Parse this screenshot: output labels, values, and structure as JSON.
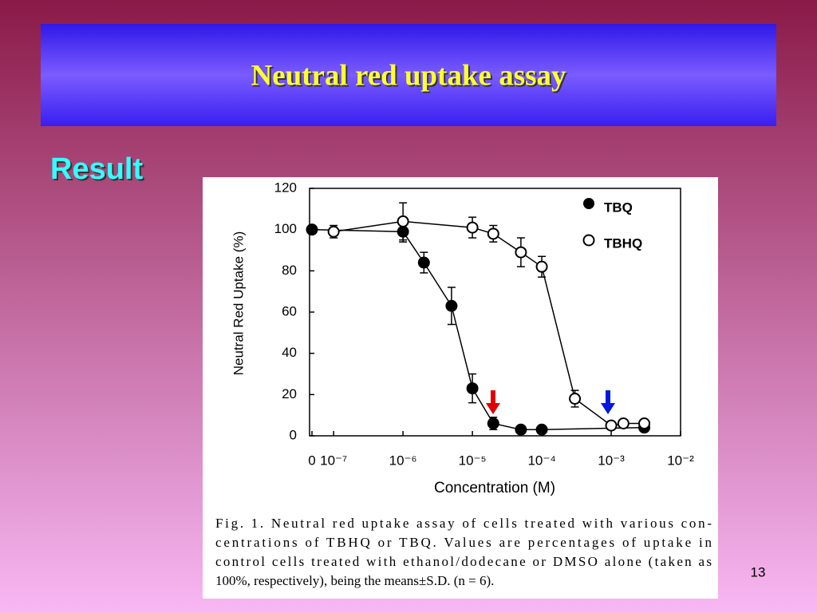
{
  "slide": {
    "title": "Neutral red uptake assay",
    "subtitle": "Result",
    "page_number": 13
  },
  "chart_data": {
    "type": "line",
    "x_scale": "log",
    "xlabel": "Concentration (M)",
    "ylabel": "Neutral Red Uptake (%)",
    "xlim": [
      4.5e-08,
      0.01
    ],
    "xticks": [
      0,
      {
        "value": 1e-07,
        "label": "10⁻⁷"
      },
      {
        "value": 1e-06,
        "label": "10⁻⁶"
      },
      {
        "value": 1e-05,
        "label": "10⁻⁵"
      },
      {
        "value": 0.0001,
        "label": "10⁻⁴"
      },
      {
        "value": 0.001,
        "label": "10⁻³"
      },
      {
        "value": 0.01,
        "label": "10⁻²"
      }
    ],
    "ylim": [
      0,
      120
    ],
    "yticks": [
      0,
      20,
      40,
      60,
      80,
      100,
      120
    ],
    "series": [
      {
        "name": "TBQ",
        "color": "#000000",
        "marker_fill": "#000000",
        "x": [
          0,
          1e-06,
          2e-06,
          5e-06,
          1e-05,
          2e-05,
          5e-05,
          0.0001,
          0.003
        ],
        "values": [
          100,
          99,
          84,
          63,
          23,
          6,
          3,
          3,
          4
        ],
        "errors": [
          1,
          5,
          5,
          9,
          7,
          3,
          1,
          1,
          1
        ]
      },
      {
        "name": "TBHQ",
        "color": "#000000",
        "marker_fill": "#ffffff",
        "x": [
          1e-07,
          1e-06,
          1e-05,
          2e-05,
          5e-05,
          0.0001,
          0.0003,
          0.001,
          0.0015,
          0.003
        ],
        "values": [
          99,
          104,
          101,
          98,
          89,
          82,
          18,
          5,
          6,
          6
        ],
        "errors": [
          3,
          9,
          5,
          4,
          7,
          5,
          4,
          1,
          1,
          1
        ]
      }
    ]
  },
  "caption": {
    "lines": [
      "Fig. 1. Neutral red uptake assay of cells treated with various con-",
      "centrations of TBHQ or TBQ. Values are percentages of uptake in",
      "control cells treated with ethanol/dodecane or DMSO alone (taken as",
      "100%, respectively), being the means±S.D. (n = 6)."
    ]
  }
}
